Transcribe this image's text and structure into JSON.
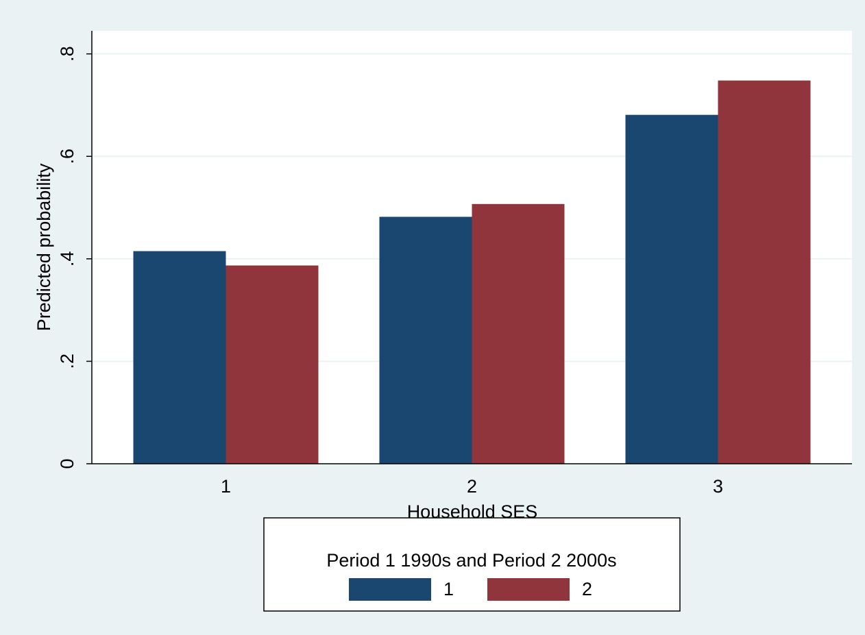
{
  "chart_data": {
    "type": "bar",
    "x_label": "Household SES",
    "y_label": "Predicted probability",
    "categories": [
      "1",
      "2",
      "3"
    ],
    "series": [
      {
        "name": "1",
        "color": "#1a476f",
        "values": [
          0.415,
          0.482,
          0.681
        ]
      },
      {
        "name": "2",
        "color": "#90353b",
        "values": [
          0.387,
          0.507,
          0.748
        ]
      }
    ],
    "ylim": [
      0,
      0.845
    ],
    "yticks": [
      0,
      {
        "value": 0.2,
        "label": ".2"
      },
      {
        "value": 0.4,
        "label": ".4"
      },
      {
        "value": 0.6,
        "label": ".6"
      },
      {
        "value": 0.8,
        "label": ".8"
      }
    ],
    "grid": true,
    "legend": {
      "title": "Period 1 1990s and Period 2 2000s",
      "position": "bottom"
    }
  }
}
